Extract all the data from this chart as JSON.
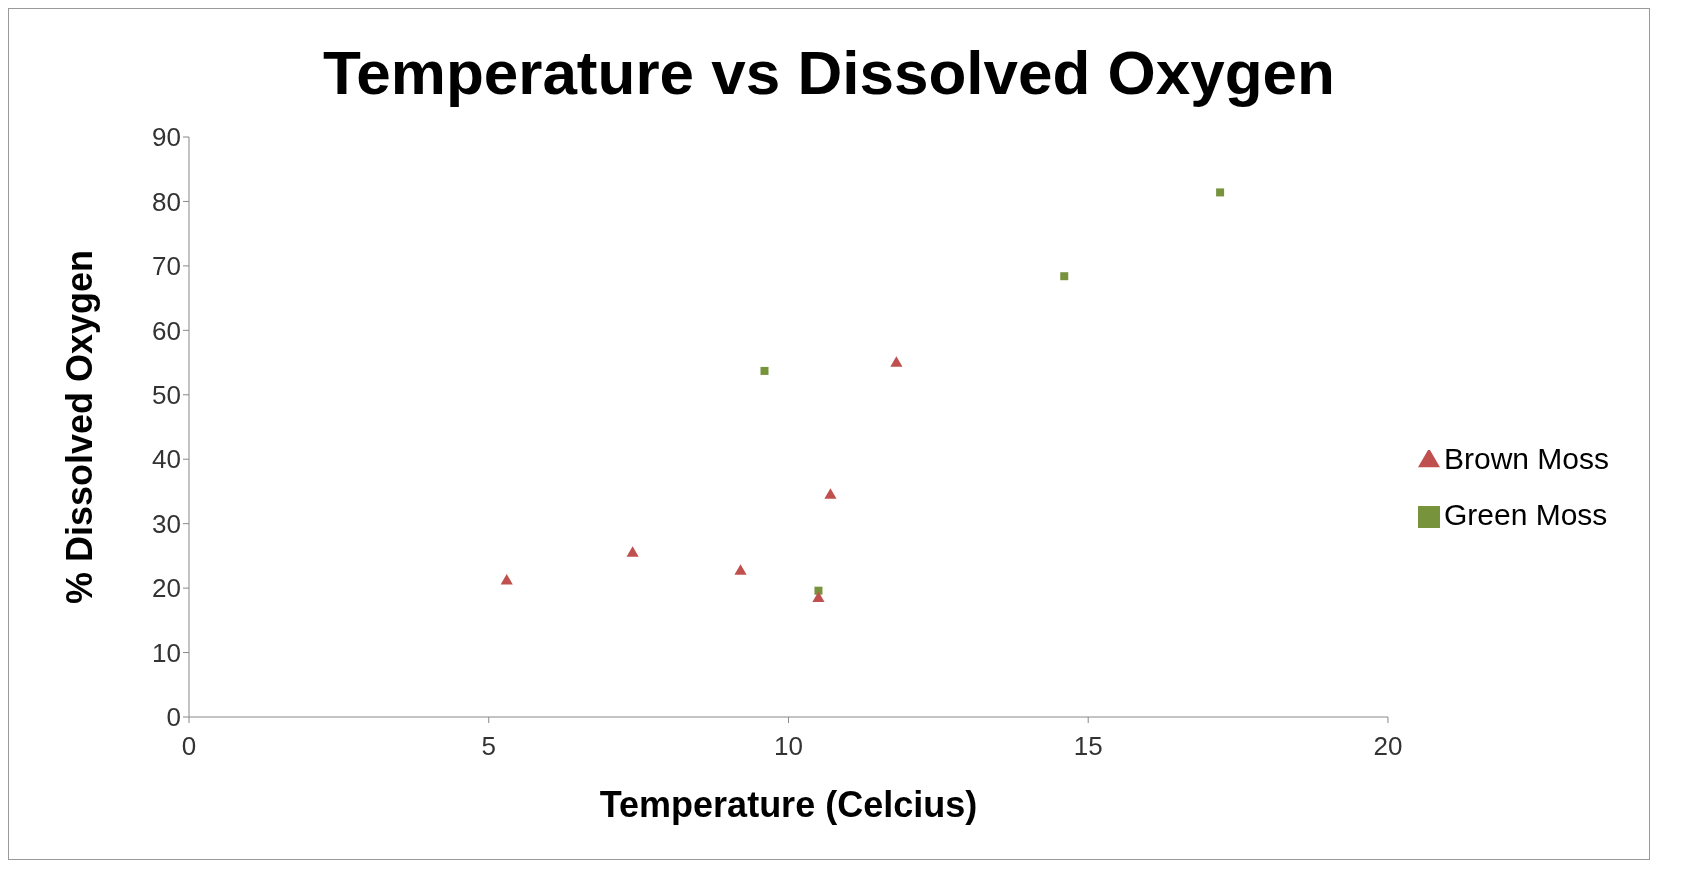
{
  "chart_data": {
    "type": "scatter",
    "title": "Temperature vs Dissolved Oxygen",
    "xlabel": "Temperature (Celcius)",
    "ylabel": "% Dissolved Oxygen",
    "series": [
      {
        "name": "Green Moss",
        "color": "#77933c",
        "marker": "square",
        "x": [
          9.6,
          10.5,
          14.6,
          17.2
        ],
        "values": [
          53.7,
          19.6,
          68.4,
          81.4
        ]
      },
      {
        "name": "Brown Moss",
        "color": "#c0504d",
        "marker": "triangle",
        "x": [
          5.3,
          7.4,
          9.2,
          10.5,
          10.7,
          11.8
        ],
        "values": [
          21.1,
          25.4,
          22.6,
          18.4,
          34.4,
          54.9
        ]
      }
    ],
    "xlim": [
      0,
      20
    ],
    "xticks": [
      0,
      5,
      10,
      15,
      20
    ],
    "ylim": [
      0,
      90
    ],
    "yticks": [
      0,
      10,
      20,
      30,
      40,
      50,
      60,
      70,
      80,
      90
    ],
    "grid": false,
    "legend": "right"
  }
}
